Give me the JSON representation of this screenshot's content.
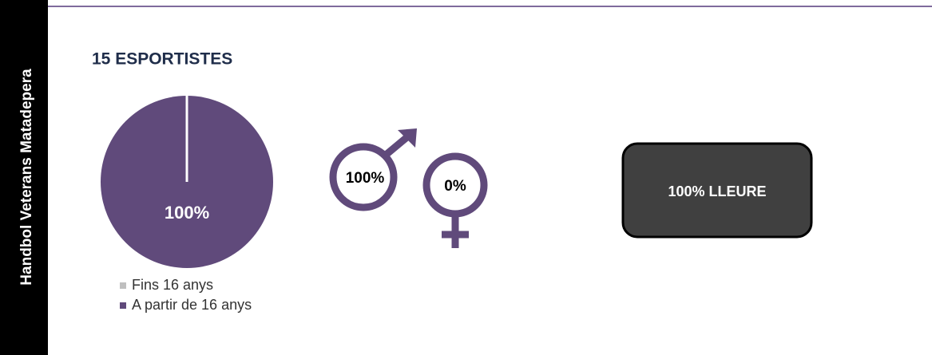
{
  "sidebar": "Handbol Veterans Matadepera",
  "title": "15 ESPORTISTES",
  "chart_data": {
    "type": "pie",
    "categories": [
      "Fins 16 anys",
      "A partir de 16 anys"
    ],
    "values": [
      0,
      100
    ],
    "value_labels": [
      null,
      "100%"
    ],
    "colors": [
      "#bfbfbf",
      "#604a7b"
    ]
  },
  "gender": {
    "male": "100%",
    "female": "0%"
  },
  "activity": "100% LLEURE"
}
